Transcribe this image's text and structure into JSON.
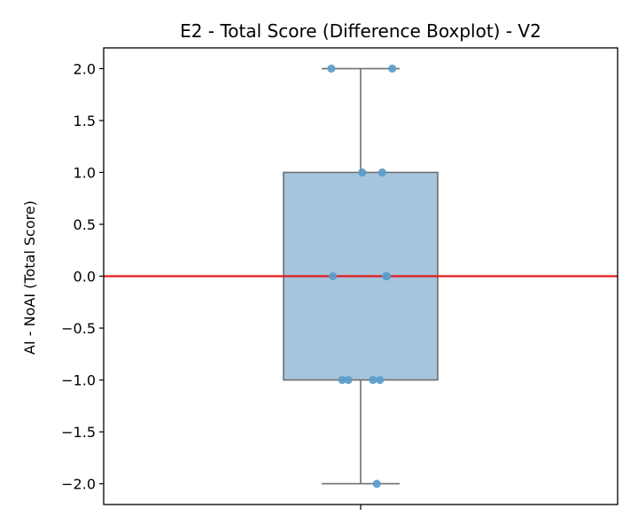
{
  "chart_data": {
    "type": "boxplot",
    "title": "E2 - Total Score (Difference Boxplot) - V2",
    "xlabel": "",
    "ylabel": "AI - NoAI (Total Score)",
    "ylim": [
      -2.2,
      2.2
    ],
    "yticks": [
      2.0,
      1.5,
      1.0,
      0.5,
      0.0,
      -0.5,
      -1.0,
      -1.5,
      -2.0
    ],
    "ytick_labels": [
      "2.0",
      "1.5",
      "1.0",
      "0.5",
      "0.0",
      "−0.5",
      "−1.0",
      "−1.5",
      "−2.0"
    ],
    "box": {
      "whisker_low": -2.0,
      "q1": -1.0,
      "median": 0.0,
      "q3": 1.0,
      "whisker_high": 2.0
    },
    "points": [
      {
        "jitter": -0.38,
        "value": 2.0
      },
      {
        "jitter": 0.41,
        "value": 2.0
      },
      {
        "jitter": 0.02,
        "value": 1.0
      },
      {
        "jitter": 0.28,
        "value": 1.0
      },
      {
        "jitter": -0.36,
        "value": 0.0
      },
      {
        "jitter": 0.33,
        "value": 0.0
      },
      {
        "jitter": 0.34,
        "value": 0.0
      },
      {
        "jitter": -0.24,
        "value": -1.0
      },
      {
        "jitter": -0.16,
        "value": -1.0
      },
      {
        "jitter": 0.16,
        "value": -1.0
      },
      {
        "jitter": 0.25,
        "value": -1.0
      },
      {
        "jitter": 0.21,
        "value": -2.0
      }
    ],
    "reference_line": {
      "y": 0.0,
      "color": "#e41a1c"
    },
    "colors": {
      "box_fill": "#a6c5dc",
      "box_edge": "#6f6f6f",
      "point": "#5b9ccb"
    }
  }
}
